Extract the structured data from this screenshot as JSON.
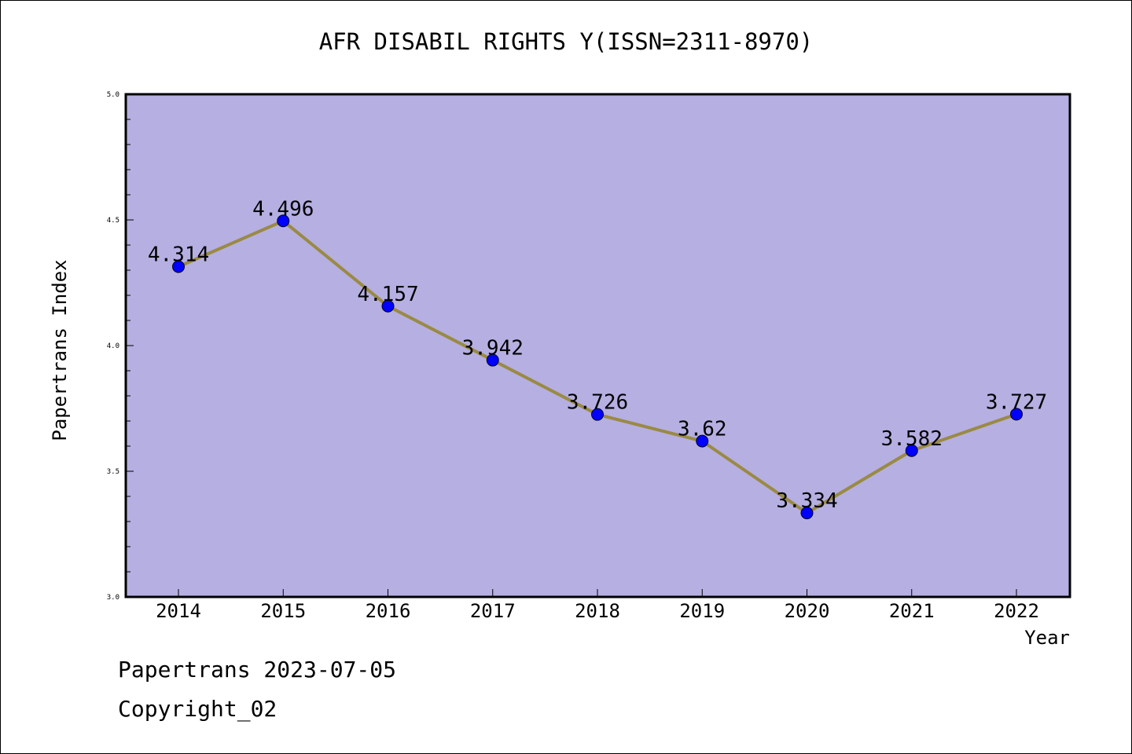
{
  "chart_data": {
    "type": "line",
    "title": "AFR DISABIL RIGHTS Y(ISSN=2311-8970)",
    "xlabel": "Year",
    "ylabel": "Papertrans Index",
    "categories": [
      "2014",
      "2015",
      "2016",
      "2017",
      "2018",
      "2019",
      "2020",
      "2021",
      "2022"
    ],
    "series": [
      {
        "values": [
          4.314,
          4.496,
          4.157,
          3.942,
          3.726,
          3.62,
          3.334,
          3.582,
          3.727
        ],
        "labels": [
          "4.314",
          "4.496",
          "4.157",
          "3.942",
          "3.726",
          "3.62",
          "3.334",
          "3.582",
          "3.727"
        ]
      }
    ],
    "ylim": [
      3.0,
      5.0
    ],
    "yticks": [
      "3.0",
      "3.5",
      "4.0",
      "4.5",
      "5.0"
    ],
    "grid": false,
    "colors": {
      "plot_background": "#b5afe2",
      "line": "#9a8a43",
      "marker": "#0000ff"
    }
  },
  "footer": {
    "source": "Papertrans 2023-07-05",
    "copyright": "Copyright_02"
  }
}
